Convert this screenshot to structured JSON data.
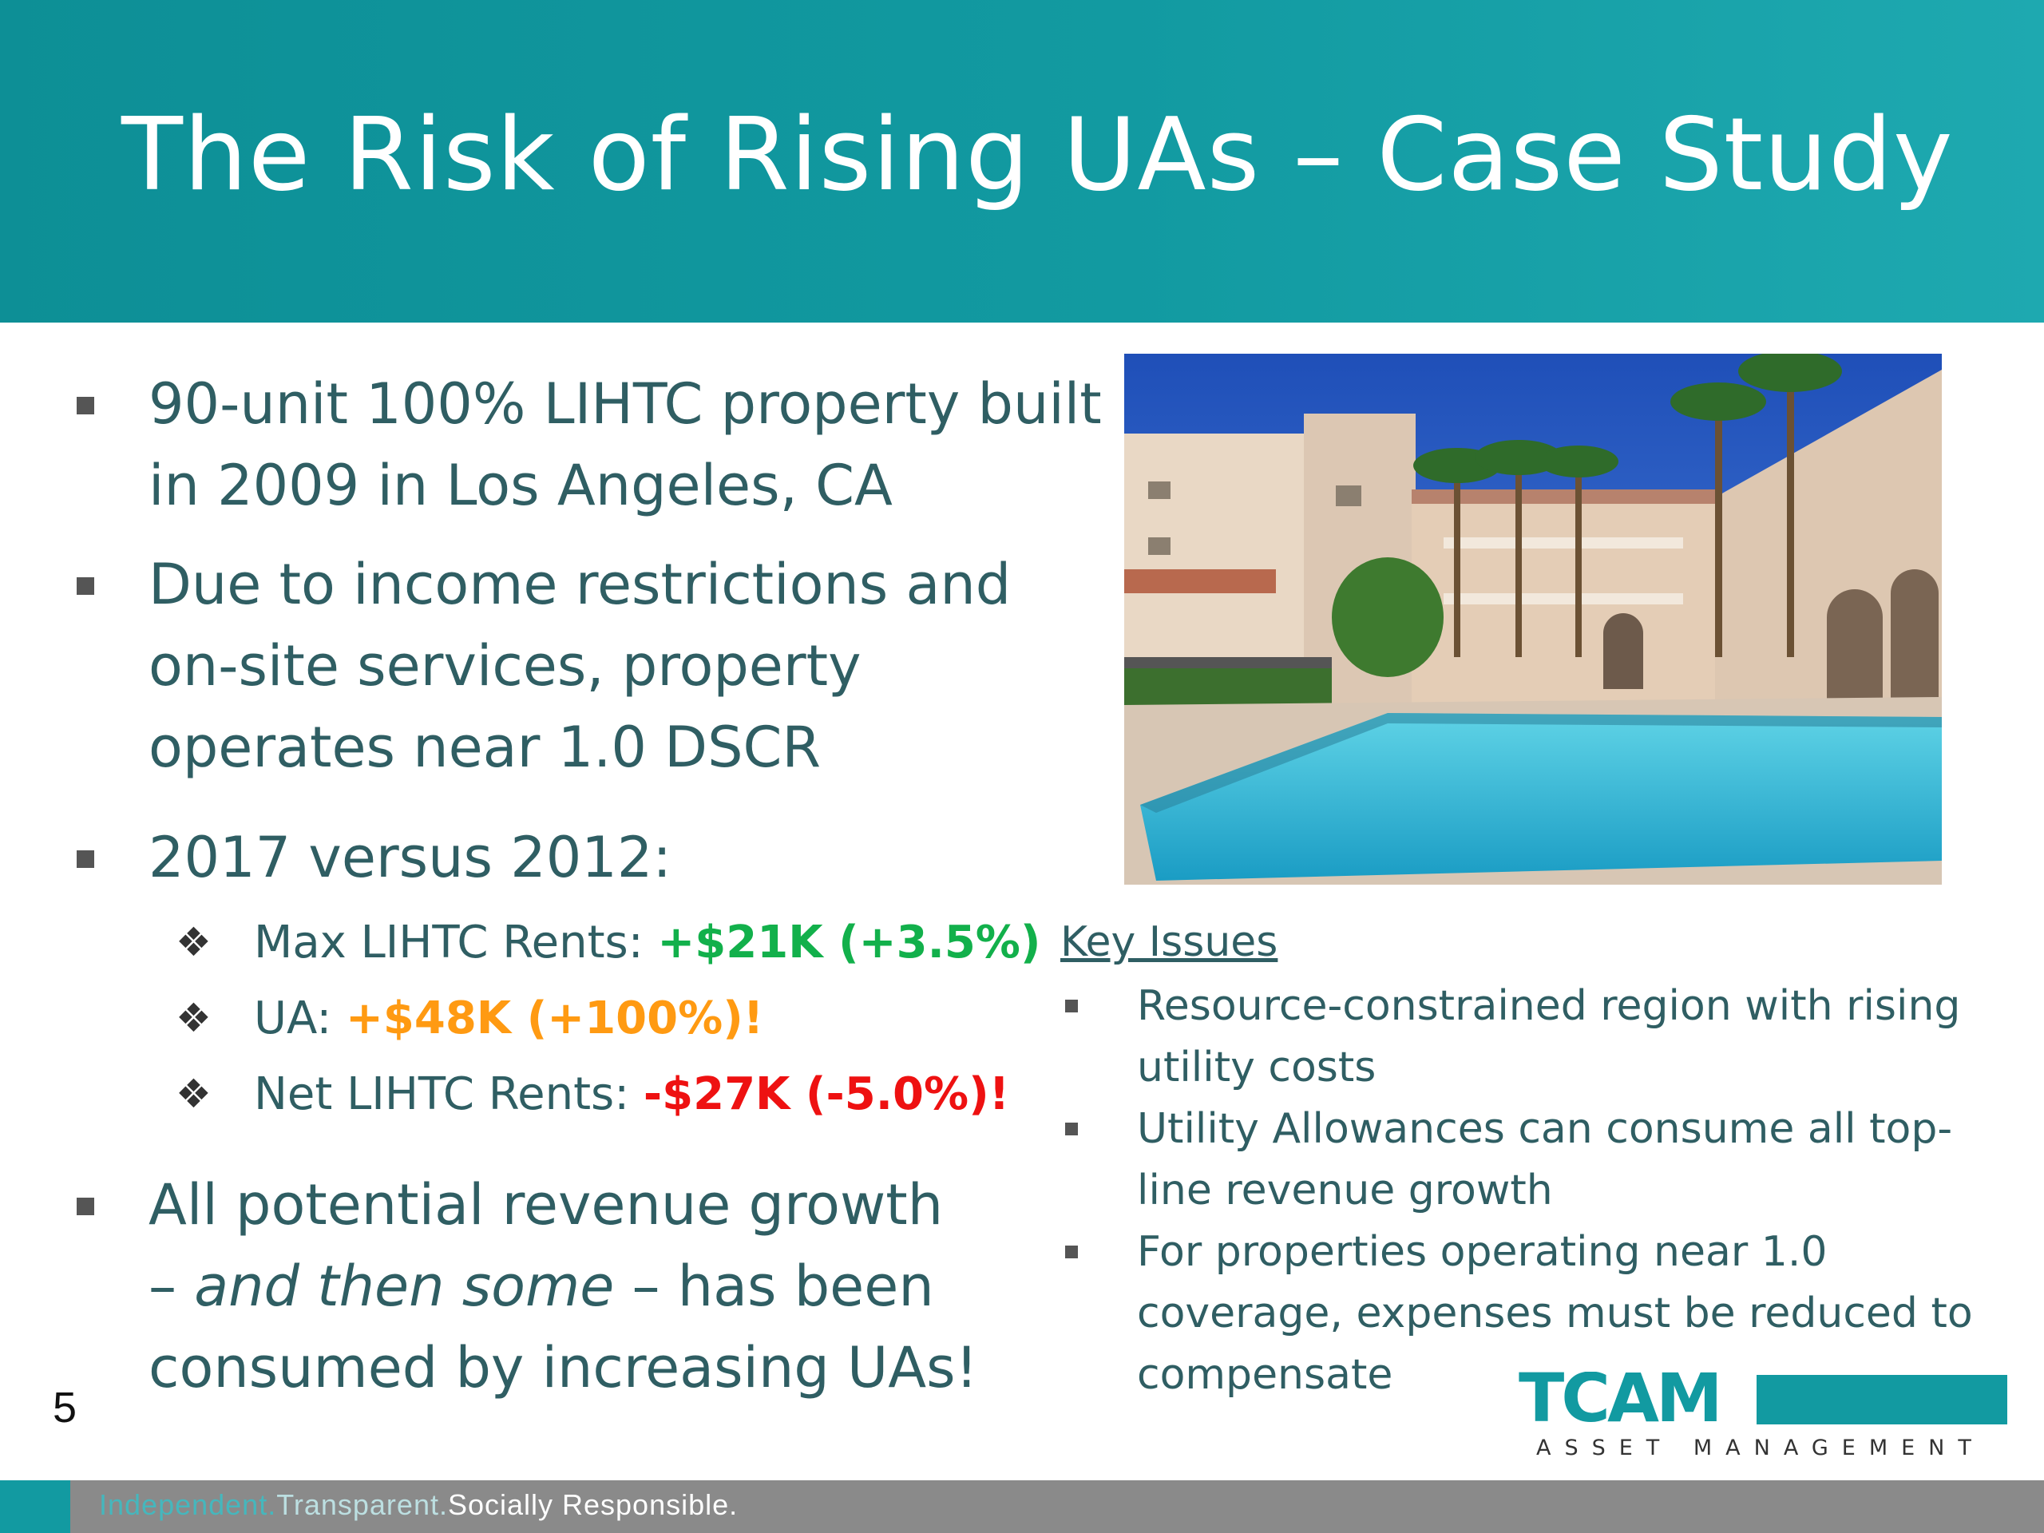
{
  "slide": {
    "title": "The Risk of Rising UAs – Case Study",
    "page_number": "5"
  },
  "bullets": [
    {
      "line1": "90-unit 100% LIHTC property built",
      "line2": "in 2009 in Los Angeles, CA"
    },
    {
      "line1": "Due to income restrictions and",
      "line2": "on-site services, property",
      "line3": "operates near 1.0 DSCR"
    },
    {
      "line1": "2017 versus 2012:"
    }
  ],
  "comparison": [
    {
      "label": "Max LIHTC Rents: ",
      "value": "+$21K (+3.5%)",
      "color": "#12b04b"
    },
    {
      "label": "UA: ",
      "value": "+$48K (+100%)!",
      "color": "#ff9a12"
    },
    {
      "label": "Net LIHTC Rents: ",
      "value": "-$27K (-5.0%)!",
      "color": "#ee1111"
    }
  ],
  "conclusion": {
    "part1": "All potential revenue growth",
    "dash1": "– ",
    "italic": "and then some",
    "part2": " – has been",
    "line3": "consumed by increasing UAs!"
  },
  "key_issues": {
    "title": "Key Issues",
    "items": [
      {
        "line1": "Resource-constrained region with rising",
        "line2": "utility costs"
      },
      {
        "line1": "Utility Allowances can consume all top-",
        "line2": "line revenue growth"
      },
      {
        "line1": "For properties operating near 1.0",
        "line2": "coverage, expenses must be reduced to",
        "line3": "compensate"
      }
    ]
  },
  "logo": {
    "name": "TCAM",
    "tagline": "ASSET MANAGEMENT"
  },
  "footer": {
    "part1": "Independent.",
    "part2": "Transparent.",
    "part3": "Socially Responsible."
  },
  "colors": {
    "accent": "#129aa1",
    "text": "#2f5e63",
    "positive": "#12b04b",
    "warning": "#ff9a12",
    "negative": "#ee1111"
  }
}
